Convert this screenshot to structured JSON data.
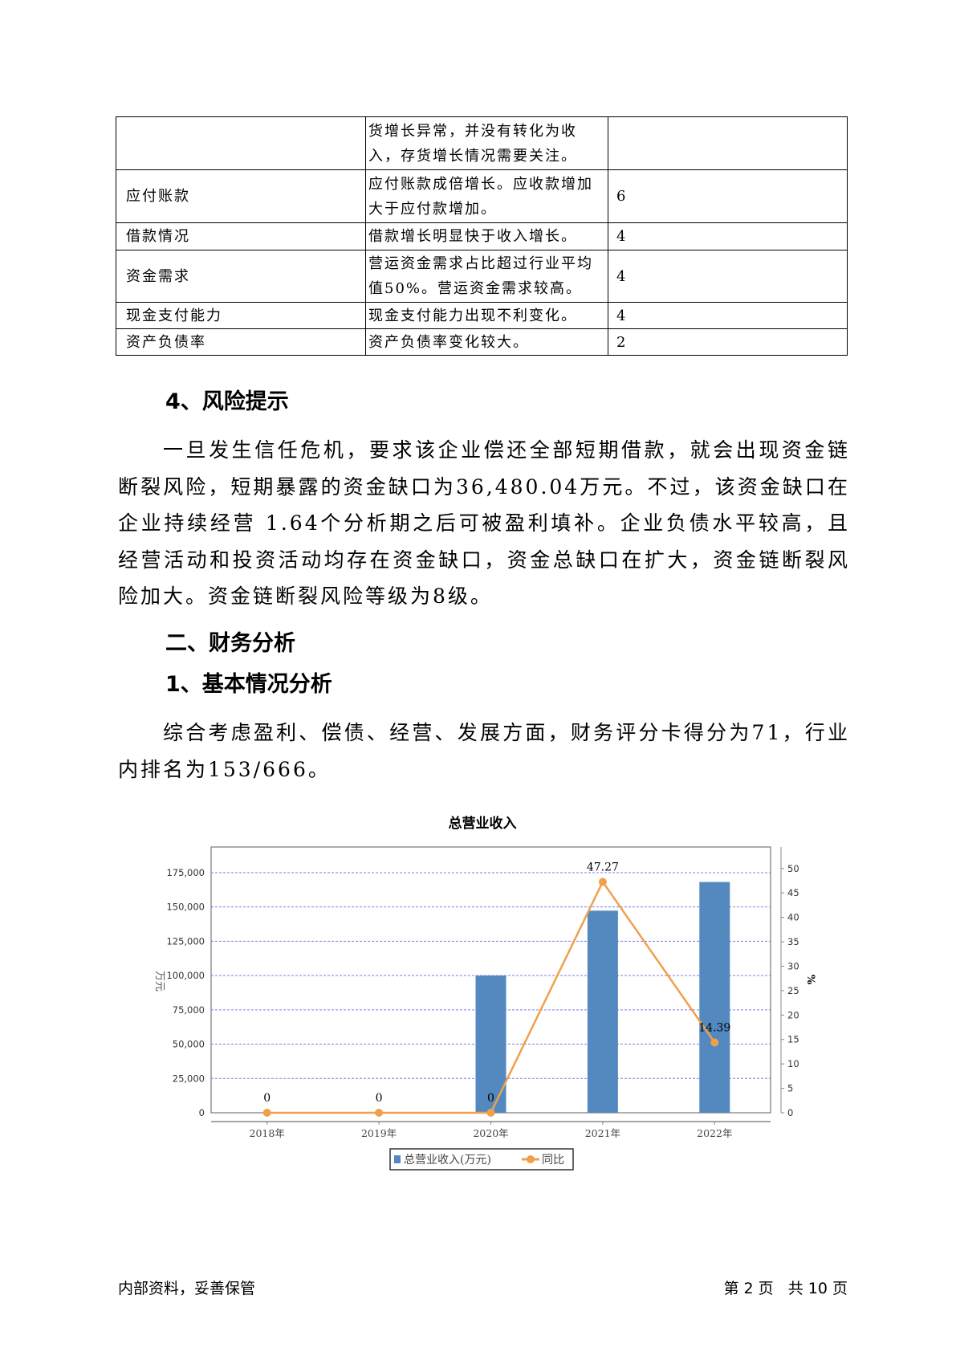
{
  "table": {
    "rows": [
      {
        "item": "",
        "desc": "货增长异常，并没有转化为收入，存货增长情况需要关注。",
        "score": ""
      },
      {
        "item": "应付账款",
        "desc": " 应付账款成倍增长。应收款增加大于应付款增加。",
        "score": "6"
      },
      {
        "item": "借款情况",
        "desc": " 借款增长明显快于收入增长。",
        "score": "4"
      },
      {
        "item": "资金需求",
        "desc": " 营运资金需求占比超过行业平均值50%。营运资金需求较高。",
        "score": "4"
      },
      {
        "item": "现金支付能力",
        "desc": " 现金支付能力出现不利变化。",
        "score": "4"
      },
      {
        "item": "资产负债率",
        "desc": " 资产负债率变化较大。",
        "score": "2"
      }
    ]
  },
  "section_risk": {
    "heading": "4、风险提示",
    "text": "一旦发生信任危机，要求该企业偿还全部短期借款，就会出现资金链断裂风险，短期暴露的资金缺口为36,480.04万元。不过，该资金缺口在企业持续经营 1.64个分析期之后可被盈利填补。企业负债水平较高，且经营活动和投资活动均存在资金缺口，资金总缺口在扩大，资金链断裂风险加大。资金链断裂风险等级为8级。"
  },
  "section_finance": {
    "heading": "二、财务分析",
    "sub_heading": "1、基本情况分析",
    "text": "综合考虑盈利、偿债、经营、发展方面，财务评分卡得分为71，行业内排名为153/666。"
  },
  "chart_data": {
    "type": "bar+line",
    "title": "总营业收入",
    "categories": [
      "2018年",
      "2019年",
      "2020年",
      "2021年",
      "2022年"
    ],
    "series": [
      {
        "name": "总营业收入(万元)",
        "type": "bar",
        "axis": "left",
        "color": "#5389bf",
        "values": [
          0,
          0,
          100000,
          147300,
          168200
        ]
      },
      {
        "name": "同比",
        "type": "line",
        "axis": "right",
        "color": "#f0a04b",
        "values": [
          0,
          0,
          0,
          47.27,
          14.39
        ],
        "labels": [
          "0",
          "0",
          "0",
          "47.27",
          "14.39"
        ]
      }
    ],
    "ylabel": "万元",
    "y2label": "%",
    "yticks": [
      "0",
      "25,000",
      "50,000",
      "75,000",
      "100,000",
      "125,000",
      "150,000",
      "175,000"
    ],
    "ylim": [
      0,
      193700
    ],
    "y2ticks": [
      "0",
      "5",
      "10",
      "15",
      "20",
      "25",
      "30",
      "35",
      "40",
      "45",
      "50"
    ],
    "y2lim": [
      0,
      54.4
    ],
    "grid": true,
    "legend": "bottom"
  },
  "footer": {
    "left": "内部资料，妥善保管",
    "right": "第 2 页   共 10 页"
  }
}
